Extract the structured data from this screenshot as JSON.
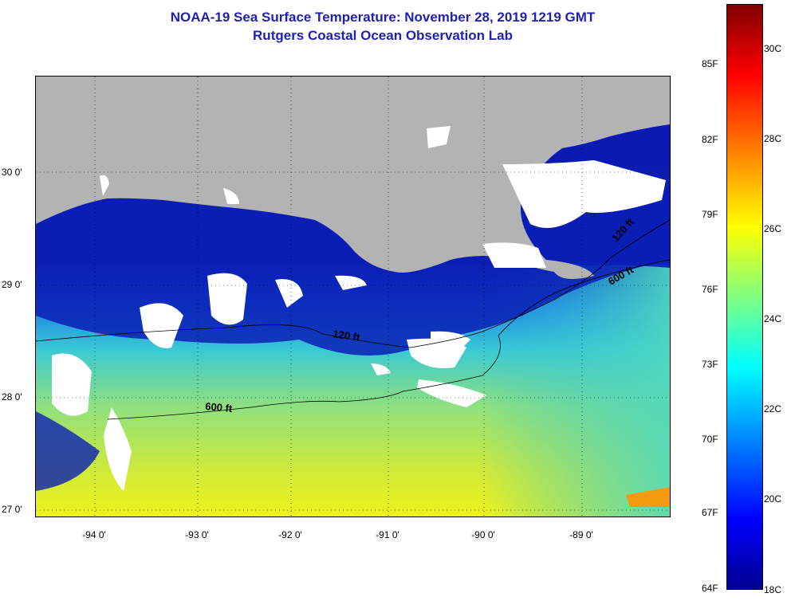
{
  "title_line1": "NOAA-19 Sea Surface Temperature:  November 28, 2019 1219 GMT",
  "title_line2": "Rutgers Coastal Ocean Observation Lab",
  "lat_labels": [
    "30 0'",
    "29 0'",
    "28 0'",
    "27 0'"
  ],
  "lon_labels": [
    "-94 0'",
    "-93 0'",
    "-92 0'",
    "-91 0'",
    "-90 0'",
    "-89 0'"
  ],
  "contour_labels": [
    "120 ft",
    "600 ft",
    "120 ft",
    "600 ft"
  ],
  "colorbar": {
    "fahrenheit_labels": [
      "85F",
      "82F",
      "79F",
      "76F",
      "73F",
      "70F",
      "67F",
      "64F"
    ],
    "celsius_labels": [
      "30C",
      "28C",
      "26C",
      "24C",
      "22C",
      "20C",
      "18C"
    ],
    "colors": {
      "low": "#00008f",
      "cold": "#0000ff",
      "mid": "#00ffff",
      "warm": "#ffff00",
      "hot": "#ff0000",
      "high": "#800000"
    }
  },
  "map_colors": {
    "land": "#b3b3b3",
    "cloud": "#ffffff",
    "shelf_water": "#0a1fb5",
    "offshore_water": "#41d7c0",
    "warm_water": "#d8ea2a"
  }
}
